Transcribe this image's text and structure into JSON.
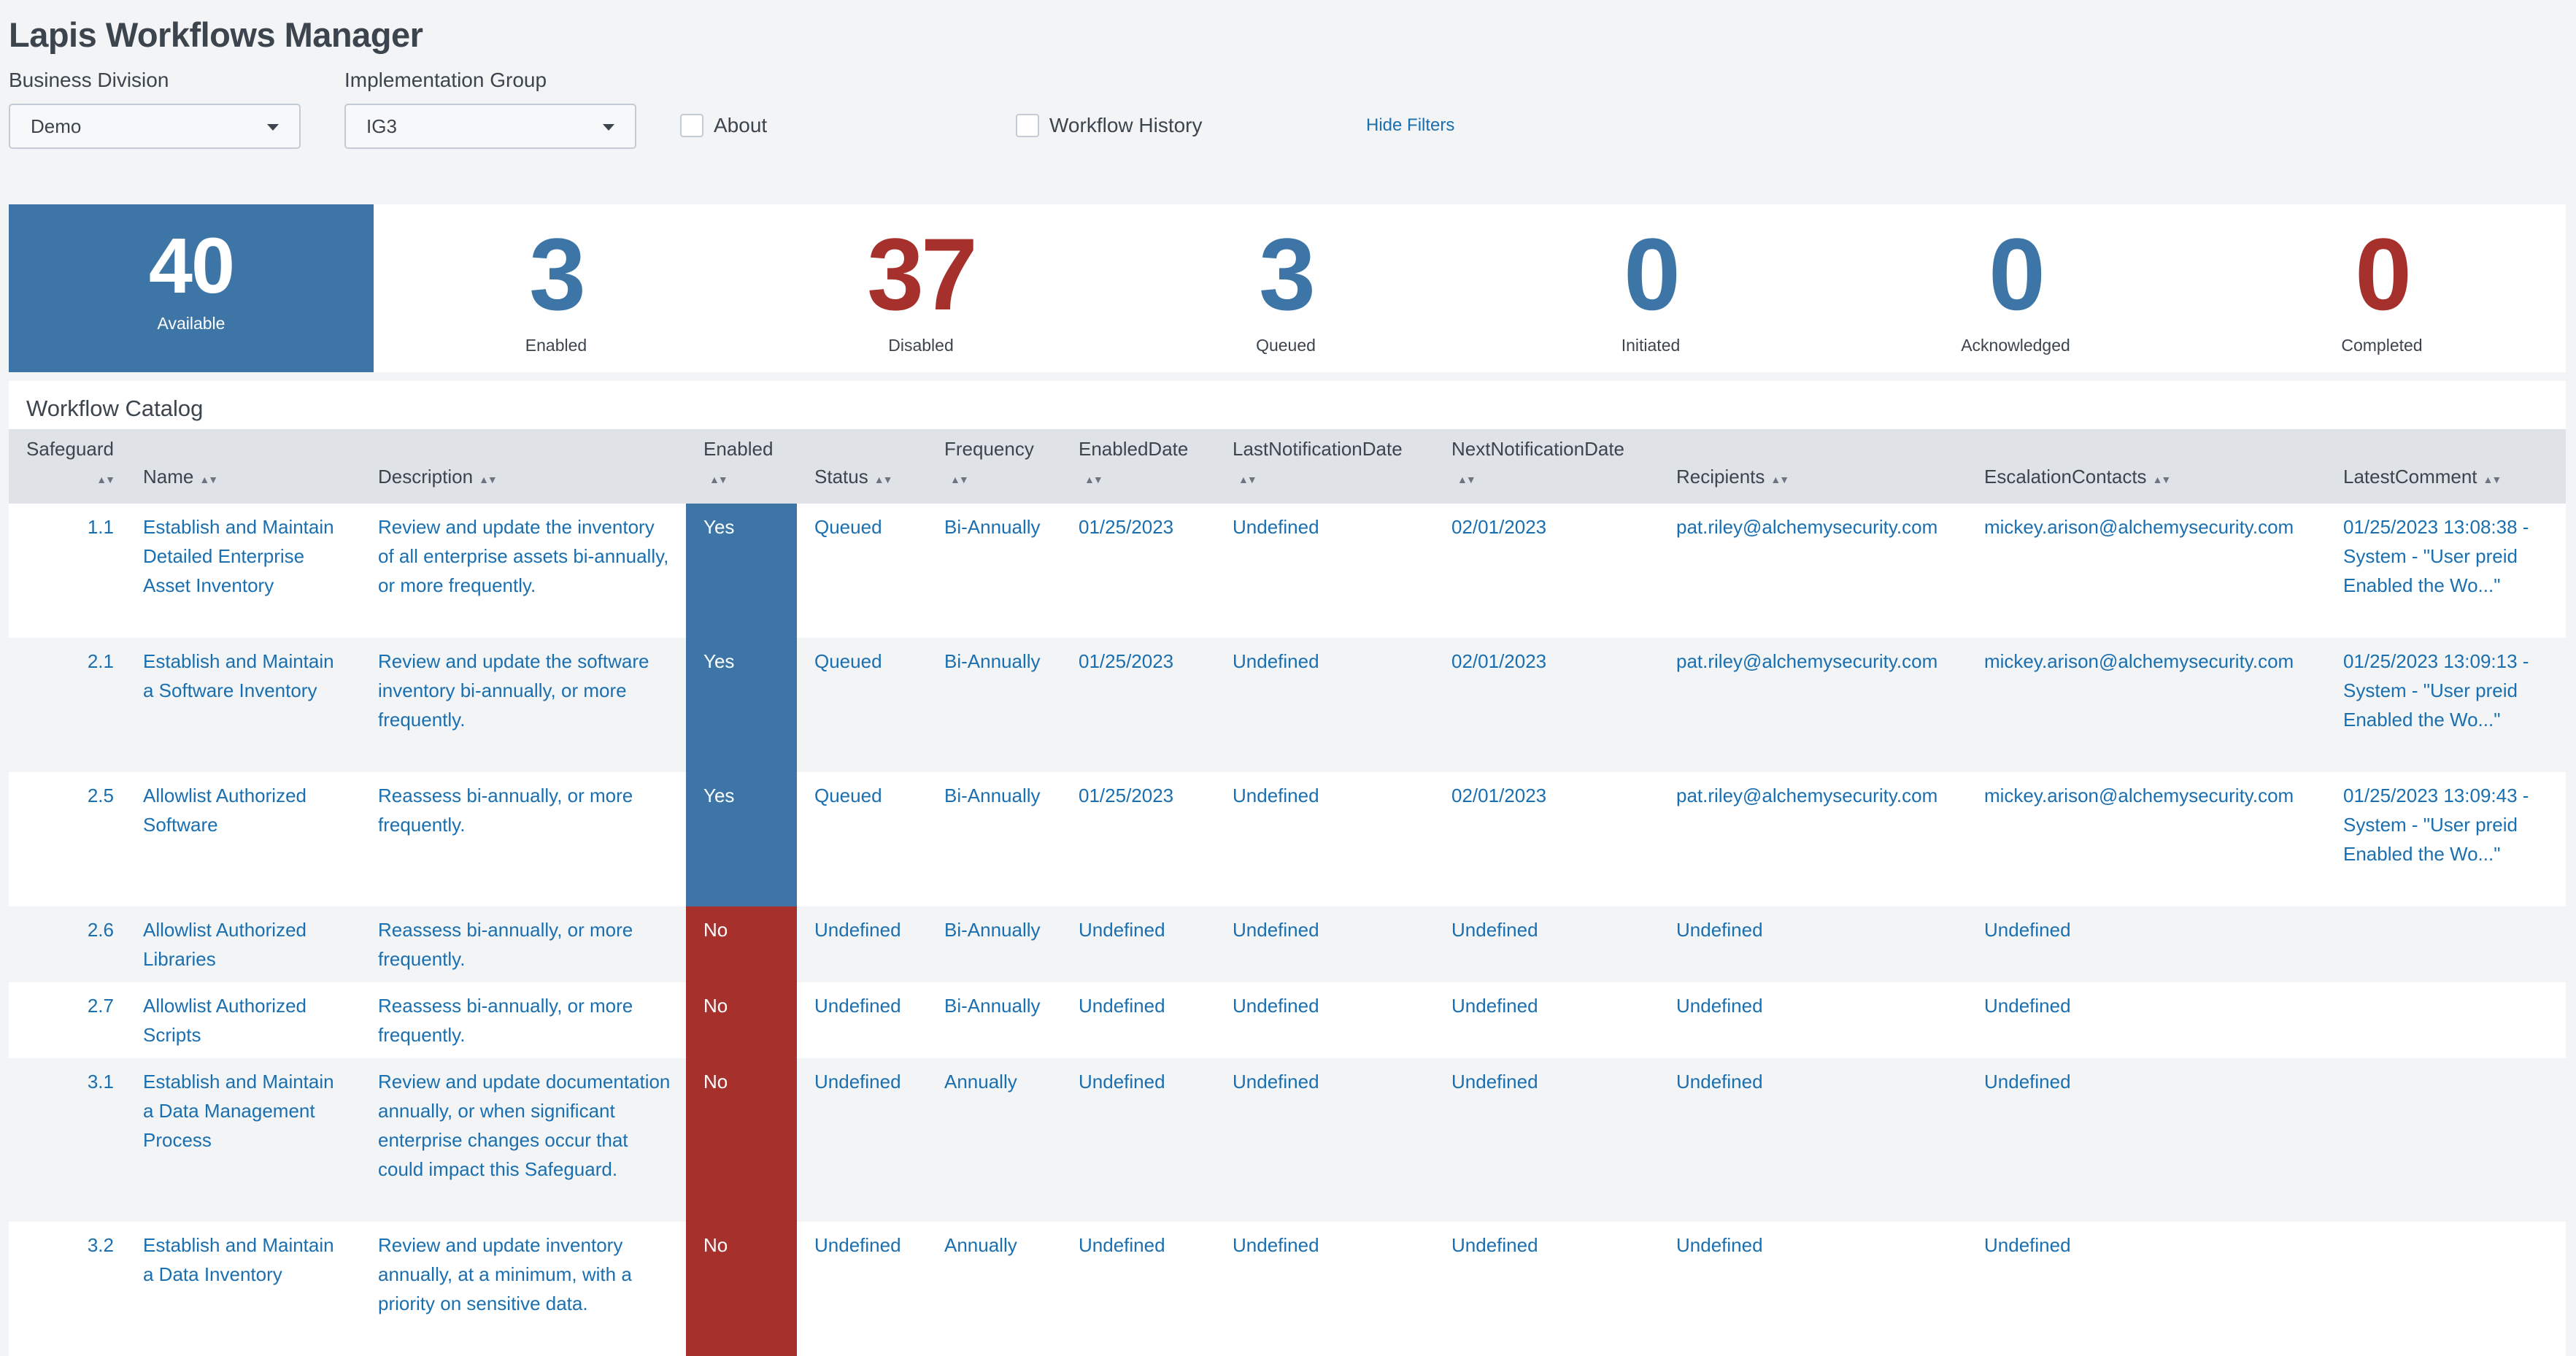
{
  "app": {
    "title": "Lapis Workflows Manager"
  },
  "filters": {
    "business_division": {
      "label": "Business Division",
      "value": "Demo"
    },
    "implementation_group": {
      "label": "Implementation Group",
      "value": "IG3"
    },
    "about": {
      "label": "About"
    },
    "workflow_history": {
      "label": "Workflow History"
    },
    "hide_filters": "Hide Filters"
  },
  "kpis": {
    "available": {
      "value": "40",
      "label": "Available"
    },
    "enabled": {
      "value": "3",
      "label": "Enabled"
    },
    "disabled": {
      "value": "37",
      "label": "Disabled"
    },
    "queued": {
      "value": "3",
      "label": "Queued"
    },
    "initiated": {
      "value": "0",
      "label": "Initiated"
    },
    "acknowledged": {
      "value": "0",
      "label": "Acknowledged"
    },
    "completed": {
      "value": "0",
      "label": "Completed"
    }
  },
  "colors": {
    "accent_blue": "#3d76a6",
    "accent_red": "#a5302c",
    "link": "#1a6fb0"
  },
  "catalog": {
    "title": "Workflow Catalog",
    "columns": [
      "Safeguard",
      "Name",
      "Description",
      "Enabled",
      "Status",
      "Frequency",
      "EnabledDate",
      "LastNotificationDate",
      "NextNotificationDate",
      "Recipients",
      "EscalationContacts",
      "LatestComment"
    ],
    "rows": [
      {
        "safeguard": "1.1",
        "name": "Establish and Maintain Detailed Enterprise Asset Inventory",
        "description": "Review and update the inventory of all enterprise assets bi-annually, or more frequently.",
        "enabled": "Yes",
        "status": "Queued",
        "frequency": "Bi-Annually",
        "enabled_date": "01/25/2023",
        "last_notification": "Undefined",
        "next_notification": "02/01/2023",
        "recipients": "pat.riley@alchemysecurity.com",
        "escalation": "mickey.arison@alchemysecurity.com",
        "comment": "01/25/2023 13:08:38 - System - \"User preid Enabled the Wo...\""
      },
      {
        "safeguard": "2.1",
        "name": "Establish and Maintain a Software Inventory",
        "description": "Review and update the software inventory bi-annually, or more frequently.",
        "enabled": "Yes",
        "status": "Queued",
        "frequency": "Bi-Annually",
        "enabled_date": "01/25/2023",
        "last_notification": "Undefined",
        "next_notification": "02/01/2023",
        "recipients": "pat.riley@alchemysecurity.com",
        "escalation": "mickey.arison@alchemysecurity.com",
        "comment": "01/25/2023 13:09:13 - System - \"User preid Enabled the Wo...\""
      },
      {
        "safeguard": "2.5",
        "name": "Allowlist Authorized Software",
        "description": "Reassess bi-annually, or more frequently.",
        "enabled": "Yes",
        "status": "Queued",
        "frequency": "Bi-Annually",
        "enabled_date": "01/25/2023",
        "last_notification": "Undefined",
        "next_notification": "02/01/2023",
        "recipients": "pat.riley@alchemysecurity.com",
        "escalation": "mickey.arison@alchemysecurity.com",
        "comment": "01/25/2023 13:09:43 - System - \"User preid Enabled the Wo...\""
      },
      {
        "safeguard": "2.6",
        "name": "Allowlist Authorized Libraries",
        "description": "Reassess bi-annually, or more frequently.",
        "enabled": "No",
        "status": "Undefined",
        "frequency": "Bi-Annually",
        "enabled_date": "Undefined",
        "last_notification": "Undefined",
        "next_notification": "Undefined",
        "recipients": "Undefined",
        "escalation": "Undefined",
        "comment": ""
      },
      {
        "safeguard": "2.7",
        "name": "Allowlist Authorized Scripts",
        "description": "Reassess bi-annually, or more frequently.",
        "enabled": "No",
        "status": "Undefined",
        "frequency": "Bi-Annually",
        "enabled_date": "Undefined",
        "last_notification": "Undefined",
        "next_notification": "Undefined",
        "recipients": "Undefined",
        "escalation": "Undefined",
        "comment": ""
      },
      {
        "safeguard": "3.1",
        "name": "Establish and Maintain a Data Management Process",
        "description": "Review and update documentation annually, or when significant enterprise changes occur that could impact this Safeguard.",
        "enabled": "No",
        "status": "Undefined",
        "frequency": "Annually",
        "enabled_date": "Undefined",
        "last_notification": "Undefined",
        "next_notification": "Undefined",
        "recipients": "Undefined",
        "escalation": "Undefined",
        "comment": ""
      },
      {
        "safeguard": "3.2",
        "name": "Establish and Maintain a Data Inventory",
        "description": "Review and update inventory annually, at a minimum, with a priority on sensitive data.",
        "enabled": "No",
        "status": "Undefined",
        "frequency": "Annually",
        "enabled_date": "Undefined",
        "last_notification": "Undefined",
        "next_notification": "Undefined",
        "recipients": "Undefined",
        "escalation": "Undefined",
        "comment": ""
      }
    ]
  }
}
